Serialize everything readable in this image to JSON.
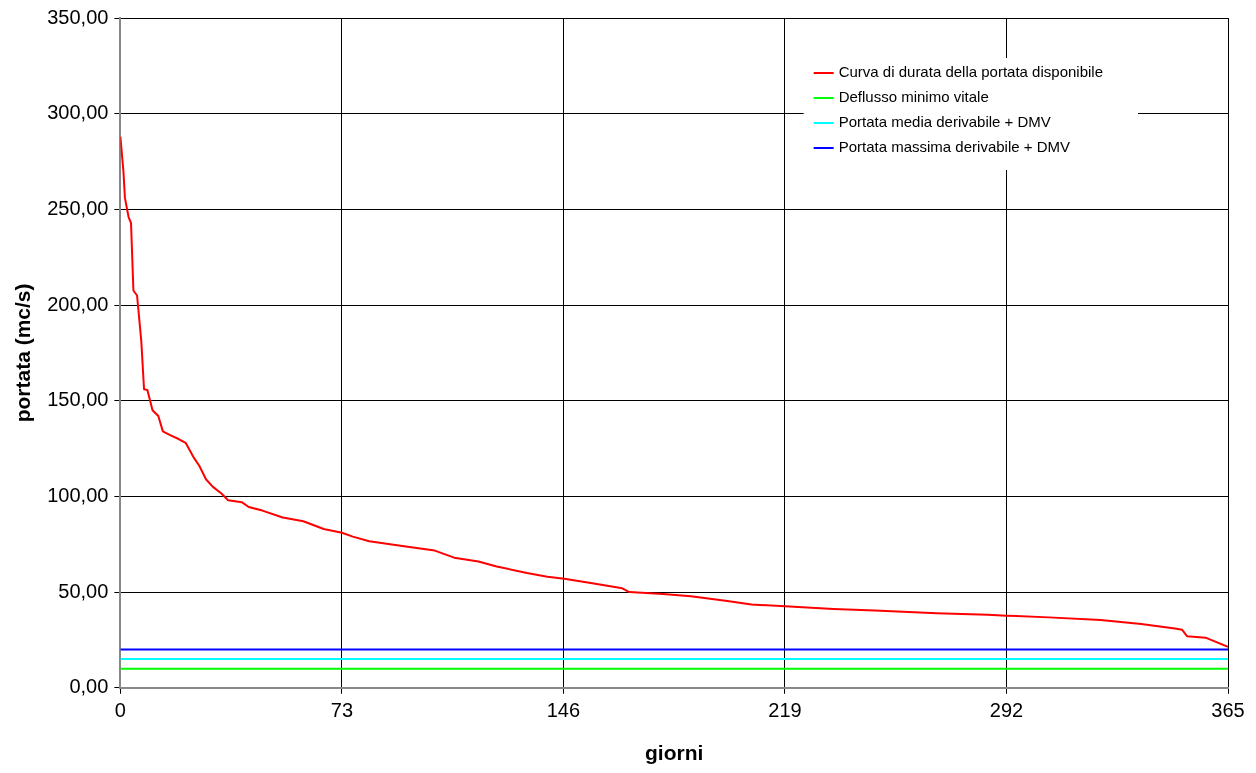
{
  "chart_data": {
    "type": "line",
    "xlabel": "giorni",
    "ylabel": "portata (mc/s)",
    "xlim": [
      0,
      365
    ],
    "xticks": [
      0,
      73,
      146,
      219,
      292,
      365
    ],
    "ylim": [
      0,
      350
    ],
    "yticks": [
      {
        "value": 0,
        "label": "0,00"
      },
      {
        "value": 50,
        "label": "50,00"
      },
      {
        "value": 100,
        "label": "100,00"
      },
      {
        "value": 150,
        "label": "150,00"
      },
      {
        "value": 200,
        "label": "200,00"
      },
      {
        "value": 250,
        "label": "250,00"
      },
      {
        "value": 300,
        "label": "300,00"
      },
      {
        "value": 350,
        "label": "350,00"
      }
    ],
    "grid": true,
    "legend": "top right",
    "marker": "none",
    "line_style": "solid",
    "series": [
      {
        "name": "Curva di durata della portata disponibile",
        "color": "#ff0000",
        "x": [
          0,
          1,
          1.5,
          2.7,
          3.5,
          4.3,
          5.5,
          6.9,
          7.8,
          8.9,
          10.6,
          12.5,
          14,
          16.4,
          19.2,
          21.5,
          24.3,
          26,
          28.2,
          30.5,
          33.3,
          35.5,
          40,
          42.3,
          46.8,
          53.5,
          60.3,
          67,
          73,
          76.6,
          82,
          93.5,
          103.6,
          110,
          118,
          124,
          134,
          140.7,
          146.3,
          154,
          165.4,
          167.7,
          178.8,
          188,
          200,
          208,
          219,
          235,
          248.6,
          269,
          285.8,
          292,
          306,
          323,
          336.4,
          347.5,
          349.9,
          351.5,
          357.6,
          361,
          365
        ],
        "values": [
          288,
          270,
          256,
          246,
          243,
          207.6,
          205,
          181,
          156,
          155.6,
          145,
          142,
          134,
          132,
          130,
          128,
          120,
          116,
          109,
          105,
          101.5,
          98,
          97,
          94.5,
          92.6,
          89,
          87,
          83,
          81,
          79,
          76.6,
          74,
          71.7,
          68,
          66,
          63.4,
          60,
          58,
          57,
          55,
          52,
          50,
          49,
          47.8,
          45.3,
          43.5,
          42.6,
          41.2,
          40.4,
          39,
          38.2,
          37.7,
          36.8,
          35.4,
          33.3,
          31,
          30.3,
          27,
          26.2,
          24,
          21.4
        ]
      },
      {
        "name": "Deflusso minimo vitale",
        "color": "#00ff00",
        "x": [
          0,
          365
        ],
        "values": [
          10,
          10
        ]
      },
      {
        "name": "Portata media derivabile + DMV",
        "color": "#00ffff",
        "x": [
          0,
          365
        ],
        "values": [
          15,
          15
        ]
      },
      {
        "name": "Portata massima derivabile + DMV",
        "color": "#0000ff",
        "x": [
          0,
          365
        ],
        "values": [
          20,
          20
        ]
      }
    ]
  }
}
